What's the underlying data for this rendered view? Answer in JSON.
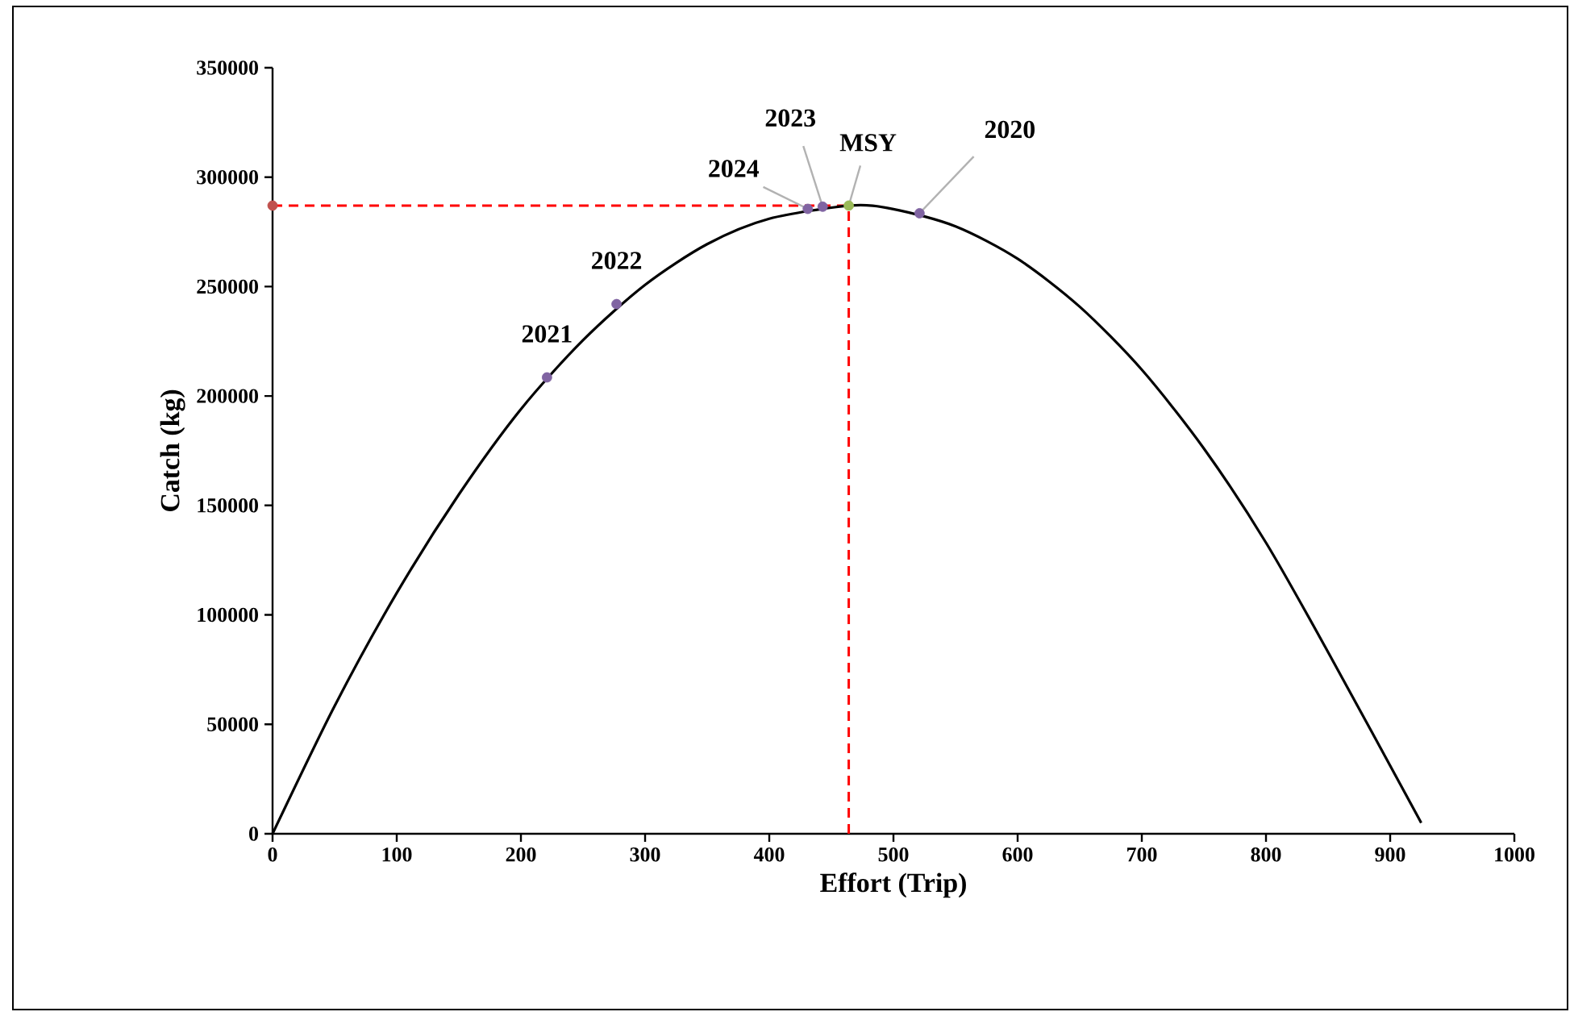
{
  "chart_data": {
    "type": "line",
    "xlabel": "Effort (Trip)",
    "ylabel": "Catch (kg)",
    "xlim": [
      0,
      1000
    ],
    "ylim": [
      0,
      350000
    ],
    "xticks": [
      0,
      100,
      200,
      300,
      400,
      500,
      600,
      700,
      800,
      900,
      1000
    ],
    "yticks": [
      0,
      50000,
      100000,
      150000,
      200000,
      250000,
      300000,
      350000
    ],
    "grid": false,
    "series": [
      {
        "color": "#000000",
        "marker": "none",
        "x": [
          0,
          50,
          100,
          150,
          200,
          250,
          300,
          350,
          400,
          465,
          500,
          550,
          600,
          650,
          700,
          750,
          800,
          850,
          925
        ],
        "values": [
          0,
          58400,
          110000,
          155000,
          194000,
          225500,
          250800,
          269400,
          281000,
          287000,
          285400,
          277500,
          262700,
          240800,
          212000,
          176000,
          133000,
          83000,
          5000
        ]
      },
      {
        "type": "scatter",
        "color": "#8064a2",
        "marker": "circle",
        "x": [
          221,
          277,
          431,
          443,
          521
        ],
        "values": [
          208500,
          242000,
          285500,
          286500,
          283500
        ]
      },
      {
        "type": "scatter",
        "color": "#9bbb59",
        "marker": "circle",
        "x": [
          464
        ],
        "values": [
          287000
        ]
      },
      {
        "type": "scatter",
        "color": "#c0504d",
        "marker": "circle",
        "x": [
          0
        ],
        "values": [
          287000
        ]
      }
    ],
    "ref_lines": [
      {
        "axis": "x",
        "value": 464,
        "color": "#ff0000",
        "line_style": "dashed"
      },
      {
        "axis": "y",
        "value": 287000,
        "color": "#ff0000",
        "line_style": "dashed"
      }
    ],
    "annotations": [
      {
        "text": "2021",
        "x": 221,
        "y": 208500
      },
      {
        "text": "2022",
        "x": 277,
        "y": 242000
      },
      {
        "text": "2024",
        "x": 431,
        "y": 285500
      },
      {
        "text": "2023",
        "x": 443,
        "y": 286500
      },
      {
        "text": "MSY",
        "x": 464,
        "y": 287000
      },
      {
        "text": "2020",
        "x": 521,
        "y": 283500
      }
    ]
  }
}
